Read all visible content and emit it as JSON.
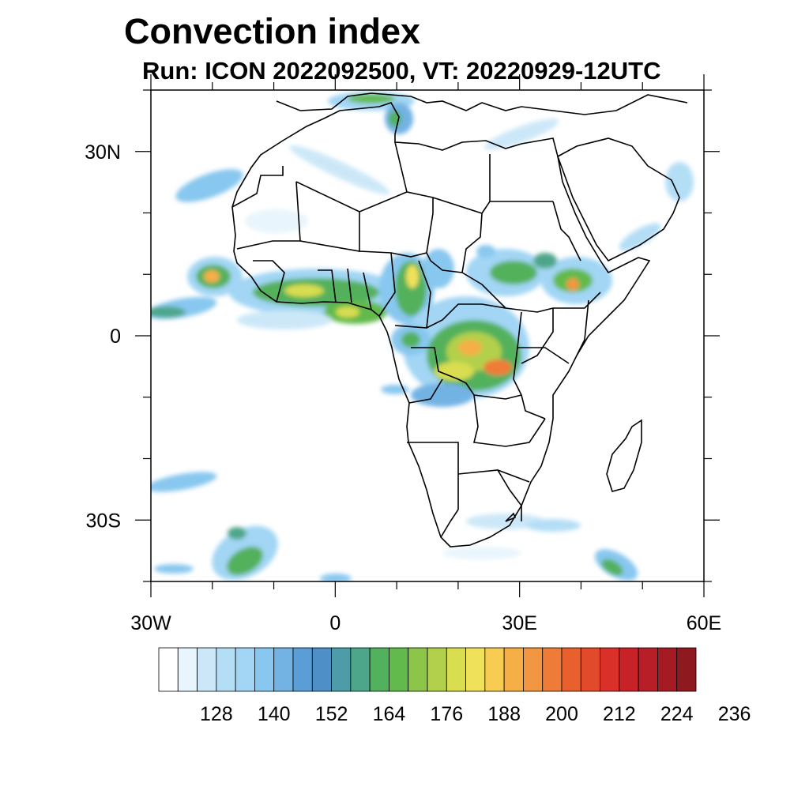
{
  "title": "Convection index",
  "subtitle": "Run: ICON 2022092500,  VT: 20220929-12UTC",
  "map": {
    "lon_range": [
      -30,
      60
    ],
    "lat_range": [
      -40,
      40
    ],
    "x_tick_labels": [
      {
        "lon": -30,
        "label": "30W"
      },
      {
        "lon": 0,
        "label": "0"
      },
      {
        "lon": 30,
        "label": "30E"
      },
      {
        "lon": 60,
        "label": "60E"
      }
    ],
    "y_tick_labels": [
      {
        "lat": 30,
        "label": "30N"
      },
      {
        "lat": 0,
        "label": "0"
      },
      {
        "lat": -30,
        "label": "30S"
      }
    ]
  },
  "colorbar": {
    "colors": [
      "#ffffff",
      "#e8f5fc",
      "#cce8f8",
      "#b4def6",
      "#a2d6f4",
      "#88c7ef",
      "#73b3e4",
      "#5b9ed6",
      "#4f8fc8",
      "#4e9ca8",
      "#4ea68a",
      "#52b15c",
      "#62ba4c",
      "#8cc54a",
      "#b2d04c",
      "#d9dd50",
      "#f0e15a",
      "#f7cc52",
      "#f5af46",
      "#f39641",
      "#ef7b38",
      "#e8602e",
      "#e14a2b",
      "#d9312a",
      "#c82229",
      "#b81e28",
      "#a51b24",
      "#8e1a1f"
    ],
    "tick_labels": [
      {
        "value": 128,
        "label": "128"
      },
      {
        "value": 140,
        "label": "140"
      },
      {
        "value": 152,
        "label": "152"
      },
      {
        "value": 164,
        "label": "164"
      },
      {
        "value": 176,
        "label": "176"
      },
      {
        "value": 188,
        "label": "188"
      },
      {
        "value": 200,
        "label": "200"
      },
      {
        "value": 212,
        "label": "212"
      },
      {
        "value": 224,
        "label": "224"
      },
      {
        "value": 236,
        "label": "236"
      }
    ]
  }
}
